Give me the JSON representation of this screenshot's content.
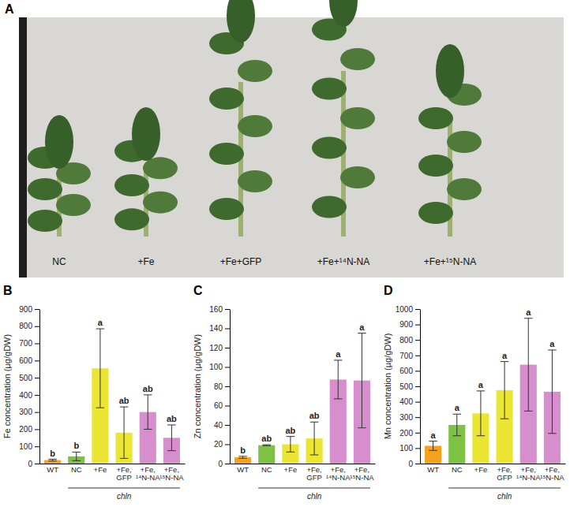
{
  "photo": {
    "letter": "A",
    "labels": [
      "NC",
      "+Fe",
      "+Fe+GFP",
      "+Fe+¹⁴N-NA",
      "+Fe+¹⁵N-NA"
    ]
  },
  "chart_data": [
    {
      "type": "bar",
      "title": "B",
      "ylabel": "Fe concentration (µg/gDW)",
      "categories": [
        "WT",
        "NC",
        "+Fe",
        "+Fe, GFP",
        "+Fe, ¹⁴N-NA",
        "+Fe, ¹⁵N-NA"
      ],
      "values": [
        20,
        42,
        555,
        180,
        300,
        150
      ],
      "errors": [
        5,
        25,
        230,
        150,
        100,
        75
      ],
      "letters": [
        "b",
        "b",
        "a",
        "ab",
        "ab",
        "ab"
      ],
      "colors": [
        "#f5a31e",
        "#7dc243",
        "#ebe534",
        "#ebe534",
        "#d68fcc",
        "#d68fcc"
      ],
      "annotations": [
        "chln"
      ],
      "ylim": [
        0,
        900
      ],
      "yticks": [
        0,
        100,
        200,
        300,
        400,
        500,
        600,
        700,
        800,
        900
      ],
      "grid": false
    },
    {
      "type": "bar",
      "title": "C",
      "ylabel": "Zn concentration (µg/gDW)",
      "categories": [
        "WT",
        "NC",
        "+Fe",
        "+Fe, GFP",
        "+Fe, ¹⁴N-NA",
        "+Fe, ¹⁵N-NA"
      ],
      "values": [
        6.5,
        19,
        20,
        26,
        87,
        86
      ],
      "errors": [
        1,
        0.5,
        8,
        17,
        20,
        49
      ],
      "letters": [
        "b",
        "ab",
        "ab",
        "ab",
        "a",
        "a"
      ],
      "colors": [
        "#f5a31e",
        "#7dc243",
        "#ebe534",
        "#ebe534",
        "#d68fcc",
        "#d68fcc"
      ],
      "annotations": [
        "chln"
      ],
      "ylim": [
        0,
        160
      ],
      "yticks": [
        0,
        20,
        40,
        60,
        80,
        100,
        120,
        140,
        160
      ],
      "grid": false
    },
    {
      "type": "bar",
      "title": "D",
      "ylabel": "Mn concentration (µg/gDW)",
      "categories": [
        "WT",
        "NC",
        "+Fe",
        "+Fe, GFP",
        "+Fe, ¹⁴N-NA",
        "+Fe, ¹⁵N-NA"
      ],
      "values": [
        115,
        250,
        325,
        475,
        640,
        465
      ],
      "errors": [
        30,
        70,
        145,
        185,
        300,
        270
      ],
      "letters": [
        "a",
        "a",
        "a",
        "a",
        "a",
        "a"
      ],
      "colors": [
        "#f5a31e",
        "#7dc243",
        "#ebe534",
        "#ebe534",
        "#d68fcc",
        "#d68fcc"
      ],
      "annotations": [
        "chln"
      ],
      "ylim": [
        0,
        1000
      ],
      "yticks": [
        0,
        100,
        200,
        300,
        400,
        500,
        600,
        700,
        800,
        900,
        1000
      ],
      "grid": false
    }
  ]
}
